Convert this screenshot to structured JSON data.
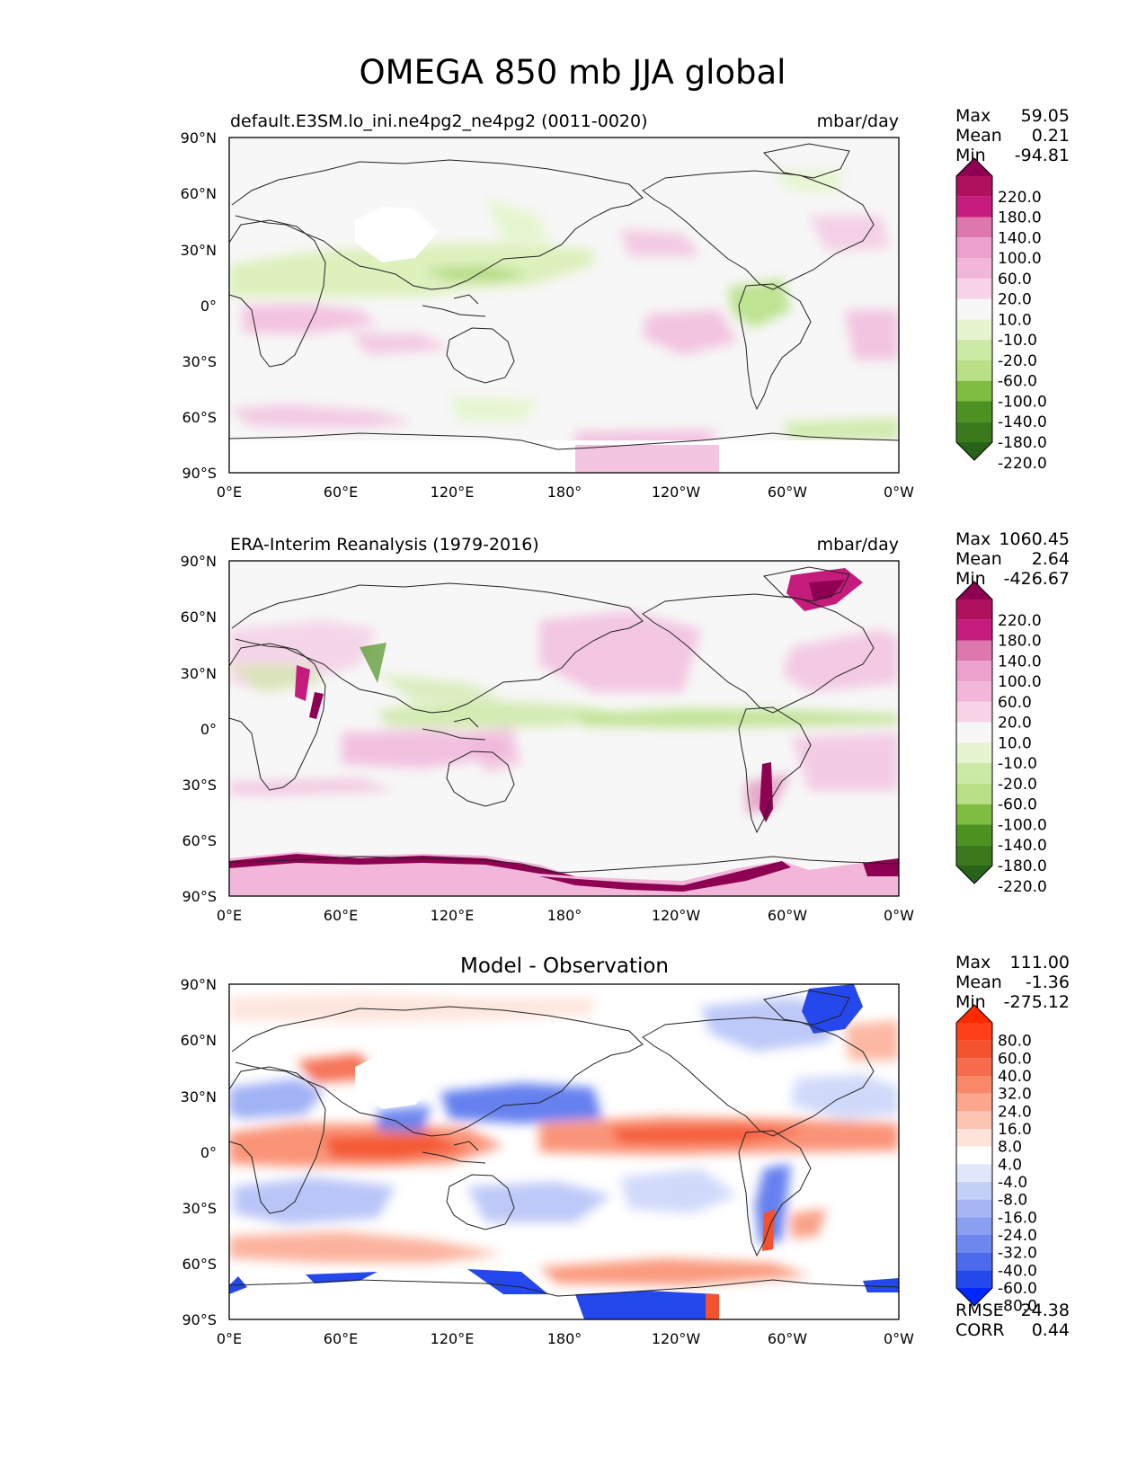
{
  "figure_title": "OMEGA 850 mb JJA global",
  "chart_data": [
    {
      "type": "heatmap",
      "map": "global",
      "title_left": "default.E3SM.lo_ini.ne4pg2_ne4pg2 (0011-0020)",
      "title_center": "",
      "units": "mbar/day",
      "stats": {
        "max_label": "Max",
        "max": "59.05",
        "mean_label": "Mean",
        "mean": "0.21",
        "min_label": "Min",
        "min": "-94.81"
      },
      "lat_ticks": [
        "90°N",
        "60°N",
        "30°N",
        "0°",
        "30°S",
        "60°S",
        "90°S"
      ],
      "lon_ticks": [
        "0°E",
        "60°E",
        "120°E",
        "180°",
        "120°W",
        "60°W",
        "0°W"
      ],
      "xlim": [
        0,
        360
      ],
      "ylim": [
        -90,
        90
      ],
      "colorbar": {
        "levels": [
          "220.0",
          "180.0",
          "140.0",
          "100.0",
          "60.0",
          "20.0",
          "10.0",
          "-10.0",
          "-20.0",
          "-60.0",
          "-100.0",
          "-140.0",
          "-180.0",
          "-220.0"
        ],
        "colors": [
          "#8e0152",
          "#b0115f",
          "#c51b7d",
          "#de77ae",
          "#eba1cb",
          "#f1b6da",
          "#f7d4e8",
          "#f7f7f7",
          "#e6f5d0",
          "#cde9a6",
          "#b8e186",
          "#7fbc41",
          "#4d9221",
          "#3a7a1d",
          "#276419"
        ]
      }
    },
    {
      "type": "heatmap",
      "map": "global",
      "title_left": "ERA-Interim Reanalysis (1979-2016)",
      "title_center": "",
      "units": "mbar/day",
      "stats": {
        "max_label": "Max",
        "max": "1060.45",
        "mean_label": "Mean",
        "mean": "2.64",
        "min_label": "Min",
        "min": "-426.67"
      },
      "lat_ticks": [
        "90°N",
        "60°N",
        "30°N",
        "0°",
        "30°S",
        "60°S",
        "90°S"
      ],
      "lon_ticks": [
        "0°E",
        "60°E",
        "120°E",
        "180°",
        "120°W",
        "60°W",
        "0°W"
      ],
      "xlim": [
        0,
        360
      ],
      "ylim": [
        -90,
        90
      ],
      "colorbar": {
        "levels": [
          "220.0",
          "180.0",
          "140.0",
          "100.0",
          "60.0",
          "20.0",
          "10.0",
          "-10.0",
          "-20.0",
          "-60.0",
          "-100.0",
          "-140.0",
          "-180.0",
          "-220.0"
        ],
        "colors": [
          "#8e0152",
          "#b0115f",
          "#c51b7d",
          "#de77ae",
          "#eba1cb",
          "#f1b6da",
          "#f7d4e8",
          "#f7f7f7",
          "#e6f5d0",
          "#cde9a6",
          "#b8e186",
          "#7fbc41",
          "#4d9221",
          "#3a7a1d",
          "#276419"
        ]
      }
    },
    {
      "type": "heatmap",
      "map": "global",
      "title_left": "",
      "title_center": "Model - Observation",
      "units": "",
      "stats": {
        "max_label": "Max",
        "max": "111.00",
        "mean_label": "Mean",
        "mean": "-1.36",
        "min_label": "Min",
        "min": "-275.12"
      },
      "extra_stats": {
        "rmse_label": "RMSE",
        "rmse": "24.38",
        "corr_label": "CORR",
        "corr": "0.44"
      },
      "lat_ticks": [
        "90°N",
        "60°N",
        "30°N",
        "0°",
        "30°S",
        "60°S",
        "90°S"
      ],
      "lon_ticks": [
        "0°E",
        "60°E",
        "120°E",
        "180°",
        "120°W",
        "60°W",
        "0°W"
      ],
      "xlim": [
        0,
        360
      ],
      "ylim": [
        -90,
        90
      ],
      "colorbar": {
        "levels": [
          "80.0",
          "60.0",
          "40.0",
          "32.0",
          "24.0",
          "16.0",
          "8.0",
          "4.0",
          "-4.0",
          "-8.0",
          "-16.0",
          "-24.0",
          "-32.0",
          "-40.0",
          "-60.0",
          "-80.0"
        ],
        "colors": [
          "#ff2a00",
          "#ff3f1a",
          "#f4522e",
          "#f76b4c",
          "#f98869",
          "#fca68c",
          "#fdc3b2",
          "#fee3da",
          "#ffffff",
          "#e1e7fb",
          "#c4cff8",
          "#a7b7f5",
          "#8a9ff2",
          "#6d87ef",
          "#4b6aec",
          "#2448eb",
          "#0027ff"
        ]
      }
    }
  ]
}
